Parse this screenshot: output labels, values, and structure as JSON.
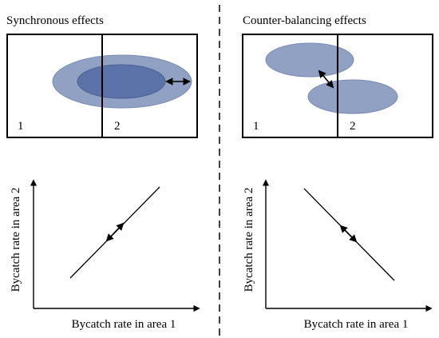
{
  "left_panel": {
    "title": "Synchronous effects",
    "area1_label": "1",
    "area2_label": "2",
    "xlabel": "Bycatch rate in area 1",
    "ylabel": "Bycatch rate in area 2",
    "relationship": "positive"
  },
  "right_panel": {
    "title": "Counter-balancing effects",
    "area1_label": "1",
    "area2_label": "2",
    "xlabel": "Bycatch rate in area 1",
    "ylabel": "Bycatch rate in area 2",
    "relationship": "negative"
  },
  "colors": {
    "outer_ellipse": "#91a1c3",
    "inner_ellipse": "#5b73a8",
    "single_ellipse": "#91a1c3",
    "line": "#000000"
  }
}
